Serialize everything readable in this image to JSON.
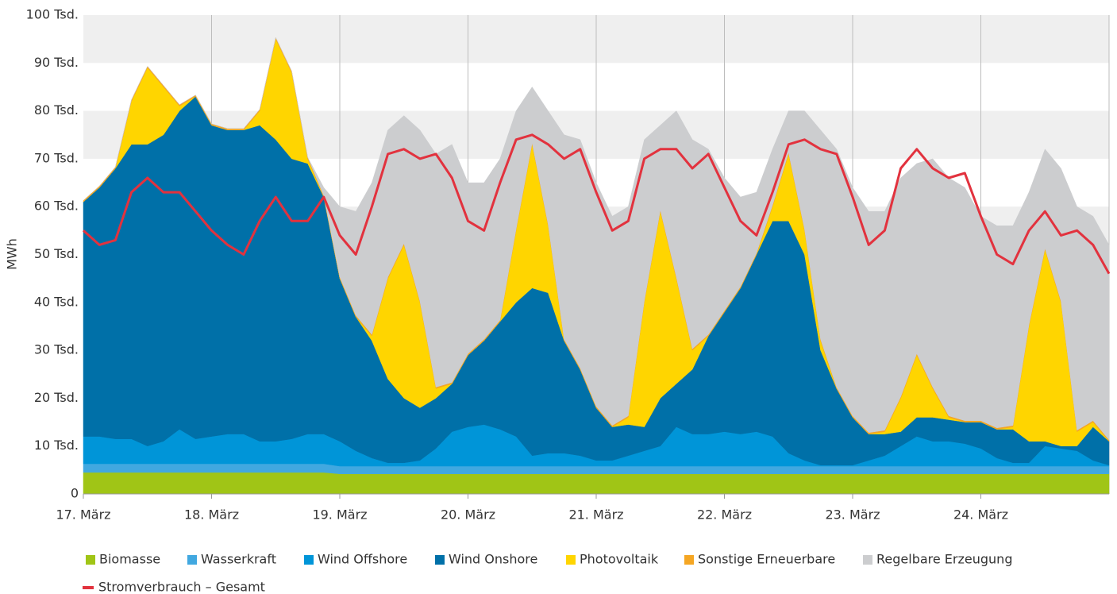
{
  "chart_data": {
    "type": "area",
    "y_label": "MWh",
    "categories": [
      "17. März",
      null,
      null,
      null,
      null,
      null,
      null,
      null,
      "18. März",
      null,
      null,
      null,
      null,
      null,
      null,
      null,
      "19. März",
      null,
      null,
      null,
      null,
      null,
      null,
      null,
      "20. März",
      null,
      null,
      null,
      null,
      null,
      null,
      null,
      "21. März",
      null,
      null,
      null,
      null,
      null,
      null,
      null,
      "22. März",
      null,
      null,
      null,
      null,
      null,
      null,
      null,
      "23. März",
      null,
      null,
      null,
      null,
      null,
      null,
      null,
      "24. März",
      null,
      null,
      null,
      null,
      null,
      null,
      null,
      null
    ],
    "ylim": [
      0,
      100
    ],
    "yticks": [
      0,
      {
        "value": 10,
        "label": "10 Tsd."
      },
      {
        "value": 20,
        "label": "20 Tsd."
      },
      {
        "value": 30,
        "label": "30 Tsd."
      },
      {
        "value": 40,
        "label": "40 Tsd."
      },
      {
        "value": 50,
        "label": "50 Tsd."
      },
      {
        "value": 60,
        "label": "60 Tsd."
      },
      {
        "value": 70,
        "label": "70 Tsd."
      },
      {
        "value": 80,
        "label": "80 Tsd."
      },
      {
        "value": 90,
        "label": "90 Tsd."
      },
      {
        "value": 100,
        "label": "100 Tsd."
      }
    ],
    "grid": true,
    "stacked": true,
    "series": [
      {
        "name": "Biomasse",
        "color": "#a0c516",
        "values": [
          4.5,
          4.5,
          4.5,
          4.5,
          4.5,
          4.5,
          4.5,
          4.5,
          4.5,
          4.5,
          4.5,
          4.5,
          4.5,
          4.5,
          4.5,
          4.5,
          4.2,
          4.2,
          4.2,
          4.2,
          4.2,
          4.2,
          4.2,
          4.2,
          4.2,
          4.2,
          4.2,
          4.2,
          4.2,
          4.2,
          4.2,
          4.2,
          4.2,
          4.2,
          4.2,
          4.2,
          4.2,
          4.2,
          4.2,
          4.2,
          4.2,
          4.2,
          4.2,
          4.2,
          4.2,
          4.2,
          4.2,
          4.2,
          4.2,
          4.2,
          4.2,
          4.2,
          4.2,
          4.2,
          4.2,
          4.2,
          4.2,
          4.2,
          4.2,
          4.2,
          4.2,
          4.2,
          4.2,
          4.2,
          4.2
        ]
      },
      {
        "name": "Wasserkraft",
        "color": "#41a8e0",
        "values": [
          1.8,
          1.8,
          1.8,
          1.8,
          1.8,
          1.8,
          1.8,
          1.8,
          1.8,
          1.8,
          1.8,
          1.8,
          1.8,
          1.8,
          1.8,
          1.8,
          1.6,
          1.6,
          1.6,
          1.6,
          1.6,
          1.6,
          1.6,
          1.6,
          1.6,
          1.6,
          1.6,
          1.6,
          1.6,
          1.6,
          1.6,
          1.6,
          1.6,
          1.6,
          1.6,
          1.6,
          1.6,
          1.6,
          1.6,
          1.6,
          1.6,
          1.6,
          1.6,
          1.6,
          1.6,
          1.6,
          1.6,
          1.6,
          1.6,
          1.6,
          1.6,
          1.6,
          1.6,
          1.6,
          1.6,
          1.6,
          1.6,
          1.6,
          1.6,
          1.6,
          1.6,
          1.6,
          1.6,
          1.6,
          1.6
        ]
      },
      {
        "name": "Wind Offshore",
        "color": "#0095d8",
        "values": [
          5.7,
          5.7,
          5.2,
          5.2,
          3.7,
          4.7,
          7.2,
          5.2,
          5.7,
          6.2,
          6.2,
          4.7,
          4.7,
          5.2,
          6.2,
          6.2,
          5.2,
          3.2,
          1.7,
          0.7,
          0.7,
          1.2,
          3.7,
          7.2,
          8.2,
          8.7,
          7.7,
          6.2,
          2.2,
          2.7,
          2.7,
          2.2,
          1.2,
          1.2,
          2.2,
          3.2,
          4.2,
          8.2,
          6.7,
          6.7,
          7.2,
          6.7,
          7.2,
          6.2,
          2.7,
          1.2,
          0.2,
          0.2,
          0.2,
          1.2,
          2.2,
          4.2,
          6.2,
          5.2,
          5.2,
          4.7,
          3.7,
          1.7,
          0.7,
          0.7,
          4.2,
          3.7,
          3.2,
          1.2,
          0.2
        ]
      },
      {
        "name": "Wind Onshore",
        "color": "#0070a8",
        "values": [
          49,
          52,
          56.5,
          61.5,
          63,
          64,
          66.5,
          71.5,
          65,
          63.5,
          63.5,
          66,
          63,
          58.5,
          56.5,
          49.5,
          34,
          28,
          24.5,
          17.5,
          13.5,
          11,
          10.5,
          10,
          15,
          17.5,
          22.5,
          28,
          35,
          33.5,
          23.5,
          18,
          11,
          7,
          6.5,
          5,
          10,
          9,
          13.5,
          20.5,
          25,
          30.5,
          37,
          45,
          48.5,
          43,
          24,
          16,
          10,
          5.5,
          4.5,
          3,
          4,
          5,
          4.5,
          4.5,
          5.5,
          6,
          7,
          4.5,
          1,
          0.5,
          1,
          7,
          5
        ]
      },
      {
        "name": "Photovoltaik",
        "color": "#ffd500",
        "values": [
          0,
          0,
          0,
          9,
          16,
          10,
          1,
          0,
          0,
          0,
          0,
          3,
          21,
          18,
          1,
          0,
          0,
          0,
          1,
          21,
          32,
          22,
          2,
          0,
          0,
          0,
          0,
          15,
          30,
          14,
          0,
          0,
          0,
          0,
          1.5,
          26,
          39,
          22,
          4,
          0,
          0,
          0,
          0,
          3,
          14,
          5,
          2,
          0,
          0,
          0,
          0.5,
          7,
          13,
          6,
          0.5,
          0,
          0,
          0,
          0.5,
          24,
          40,
          30,
          3,
          1,
          0
        ]
      },
      {
        "name": "Sonstige Erneuerbare",
        "color": "#f5a623",
        "values": [
          0.3,
          0.3,
          0.3,
          0.3,
          0.3,
          0.3,
          0.3,
          0.3,
          0.3,
          0.3,
          0.3,
          0.3,
          0.3,
          0.3,
          0.3,
          0.3,
          0.3,
          0.3,
          0.3,
          0.3,
          0.3,
          0.3,
          0.3,
          0.3,
          0.3,
          0.3,
          0.3,
          0.3,
          0.3,
          0.3,
          0.3,
          0.3,
          0.3,
          0.3,
          0.3,
          0.3,
          0.3,
          0.3,
          0.3,
          0.3,
          0.3,
          0.3,
          0.3,
          0.3,
          0.3,
          0.3,
          0.3,
          0.3,
          0.3,
          0.3,
          0.3,
          0.3,
          0.3,
          0.3,
          0.3,
          0.3,
          0.3,
          0.3,
          0.3,
          0.3,
          0.3,
          0.3,
          0.3,
          0.3,
          0.3
        ]
      },
      {
        "name": "Regelbare Erzeugung",
        "color": "#cccdcf",
        "values": [
          0,
          0,
          0,
          0,
          0,
          0,
          0,
          0,
          0,
          0,
          0,
          0,
          0,
          0,
          0,
          1.7,
          14.7,
          21.7,
          31.7,
          30.7,
          26.7,
          35.7,
          48.7,
          49.7,
          35.7,
          32.7,
          33.7,
          24.7,
          11.7,
          23.7,
          42.7,
          47.7,
          46.7,
          43.7,
          43.7,
          33.7,
          17.7,
          34.7,
          43.7,
          38.7,
          27.7,
          18.7,
          12.7,
          11.7,
          8.7,
          24.7,
          43.7,
          49.7,
          47.7,
          46.2,
          45.7,
          45.7,
          39.7,
          47.7,
          49.7,
          48.7,
          42.7,
          42.2,
          41.7,
          27.7,
          20.7,
          27.7,
          46.7,
          42.7,
          40.7
        ]
      },
      {
        "name": "Stromverbrauch – Gesamt",
        "type": "line",
        "color": "#e2323e",
        "values": [
          55,
          52,
          53,
          63,
          66,
          63,
          63,
          59,
          55,
          52,
          50,
          57,
          62,
          57,
          57,
          62,
          54,
          50,
          60,
          71,
          72,
          70,
          71,
          66,
          57,
          55,
          65,
          74,
          75,
          73,
          70,
          72,
          63,
          55,
          57,
          70,
          72,
          72,
          68,
          71,
          64,
          57,
          54,
          63,
          73,
          74,
          72,
          71,
          62,
          52,
          55,
          68,
          72,
          68,
          66,
          67,
          58,
          50,
          48,
          55,
          59,
          54,
          55,
          52,
          46
        ]
      }
    ]
  }
}
